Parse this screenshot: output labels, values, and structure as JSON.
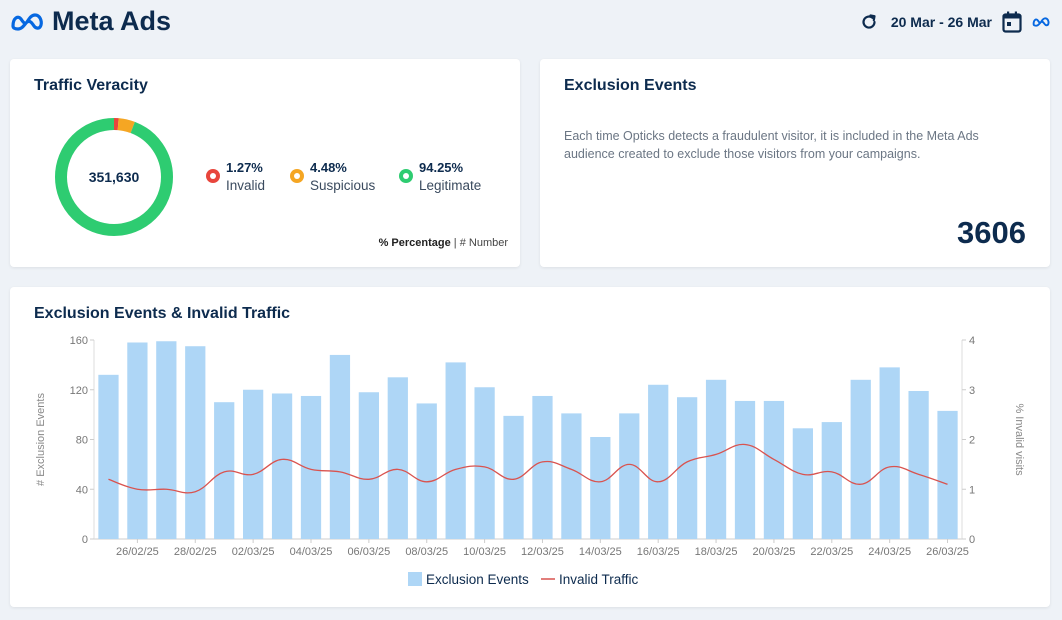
{
  "header": {
    "title": "Meta Ads",
    "date_range": "20 Mar - 26 Mar",
    "icons": [
      "meta-logo-icon",
      "refresh-icon",
      "calendar-icon",
      "meta-small-icon"
    ]
  },
  "traffic_veracity": {
    "title": "Traffic Veracity",
    "total": "351,630",
    "segments": [
      {
        "pct": "1.27%",
        "label": "Invalid",
        "value": 1.27,
        "color": "#e8453c"
      },
      {
        "pct": "4.48%",
        "label": "Suspicious",
        "value": 4.48,
        "color": "#f5a623"
      },
      {
        "pct": "94.25%",
        "label": "Legitimate",
        "value": 94.25,
        "color": "#2ecc71"
      }
    ],
    "toggle": {
      "percentage": "% Percentage",
      "separator": " | ",
      "number": "# Number"
    }
  },
  "exclusion_events": {
    "title": "Exclusion Events",
    "description": "Each time Opticks detects a fraudulent visitor, it is included in the Meta Ads audience created to exclude those visitors from your campaigns.",
    "value": "3606"
  },
  "chart": {
    "title": "Exclusion Events & Invalid Traffic"
  },
  "chart_data": {
    "type": "bar",
    "title": "Exclusion Events & Invalid Traffic",
    "x": [
      "25/02/25",
      "26/02/25",
      "27/02/25",
      "28/02/25",
      "01/03/25",
      "02/03/25",
      "03/03/25",
      "04/03/25",
      "05/03/25",
      "06/03/25",
      "07/03/25",
      "08/03/25",
      "09/03/25",
      "10/03/25",
      "11/03/25",
      "12/03/25",
      "13/03/25",
      "14/03/25",
      "15/03/25",
      "16/03/25",
      "17/03/25",
      "18/03/25",
      "19/03/25",
      "20/03/25",
      "21/03/25",
      "22/03/25",
      "23/03/25",
      "24/03/25",
      "25/03/25",
      "26/03/25"
    ],
    "tick_labels": [
      "26/02/25",
      "28/02/25",
      "02/03/25",
      "04/03/25",
      "06/03/25",
      "08/03/25",
      "10/03/25",
      "12/03/25",
      "14/03/25",
      "16/03/25",
      "18/03/25",
      "20/03/25",
      "22/03/25",
      "24/03/25",
      "26/03/25"
    ],
    "series": [
      {
        "name": "Exclusion Events",
        "type": "bar",
        "axis": "left",
        "color": "#aed6f6",
        "values": [
          132,
          158,
          159,
          155,
          110,
          120,
          117,
          115,
          148,
          118,
          130,
          109,
          142,
          122,
          99,
          115,
          101,
          82,
          101,
          124,
          114,
          128,
          111,
          111,
          89,
          94,
          128,
          138,
          119,
          103
        ]
      },
      {
        "name": "Invalid Traffic",
        "type": "line",
        "axis": "right",
        "color": "#d9534f",
        "values": [
          1.2,
          1.0,
          1.0,
          0.95,
          1.35,
          1.3,
          1.6,
          1.4,
          1.35,
          1.2,
          1.4,
          1.15,
          1.4,
          1.45,
          1.2,
          1.55,
          1.4,
          1.15,
          1.5,
          1.15,
          1.55,
          1.7,
          1.9,
          1.6,
          1.3,
          1.35,
          1.1,
          1.45,
          1.3,
          1.1
        ]
      }
    ],
    "ylabel": "# Exclusion Events",
    "y2label": "% Invalid visits",
    "ylim": [
      0,
      160
    ],
    "y_ticks": [
      0,
      40,
      80,
      120,
      160
    ],
    "y2lim": [
      0,
      4
    ],
    "y2_ticks": [
      0,
      1,
      2,
      3,
      4
    ],
    "legend": "bottom"
  }
}
